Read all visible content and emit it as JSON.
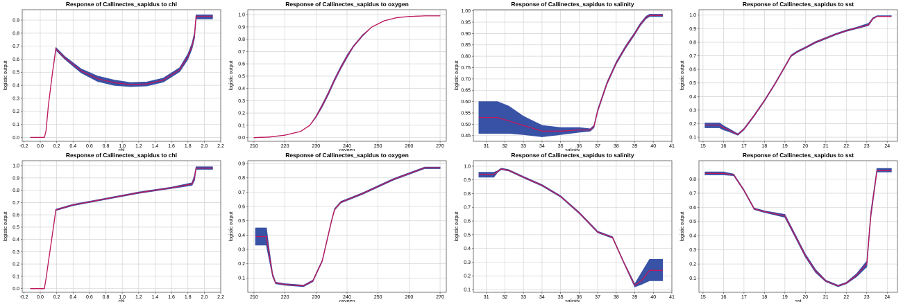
{
  "chart_data": [
    {
      "type": "line",
      "title": "Response of Callinectes_sapidus to chl",
      "xlabel": "chl",
      "ylabel": "logistic output",
      "xlim": [
        -0.22,
        2.2
      ],
      "ylim": [
        -0.03,
        0.98
      ],
      "xticks": [
        -0.2,
        0.0,
        0.2,
        0.4,
        0.6,
        0.8,
        1.0,
        1.2,
        1.4,
        1.6,
        1.8,
        2.0,
        2.2
      ],
      "xticklabels": [
        "-0.2",
        "0.0",
        "0.2",
        "0.4",
        "0.6",
        "0.8",
        "1.0",
        "1.2",
        "1.4",
        "1.6",
        "1.8",
        "2.0",
        "2.2"
      ],
      "yticks": [
        0.0,
        0.1,
        0.2,
        0.3,
        0.4,
        0.5,
        0.6,
        0.7,
        0.8,
        0.9
      ],
      "yticklabels": [
        "0.0",
        "0.1",
        "0.2",
        "0.3",
        "0.4",
        "0.5",
        "0.6",
        "0.7",
        "0.8",
        "0.9"
      ],
      "grid": true,
      "series": [
        {
          "x": [
            -0.12,
            0.05,
            0.07,
            0.1,
            0.15,
            0.19,
            0.3,
            0.5,
            0.7,
            0.9,
            1.1,
            1.3,
            1.5,
            1.7,
            1.8,
            1.85,
            1.88,
            1.9,
            2.1
          ],
          "y": [
            0.0,
            0.0,
            0.05,
            0.25,
            0.5,
            0.68,
            0.61,
            0.51,
            0.45,
            0.42,
            0.405,
            0.41,
            0.44,
            0.52,
            0.62,
            0.7,
            0.78,
            0.93,
            0.93
          ],
          "lower": [
            0.0,
            0.0,
            0.05,
            0.25,
            0.5,
            0.67,
            0.6,
            0.495,
            0.43,
            0.4,
            0.39,
            0.395,
            0.425,
            0.505,
            0.6,
            0.68,
            0.76,
            0.91,
            0.91
          ],
          "upper": [
            0.0,
            0.0,
            0.05,
            0.25,
            0.5,
            0.69,
            0.62,
            0.525,
            0.47,
            0.44,
            0.42,
            0.425,
            0.455,
            0.535,
            0.64,
            0.72,
            0.8,
            0.94,
            0.94
          ]
        }
      ]
    },
    {
      "type": "line",
      "title": "Response of Callinectes_sapidus to oxygen",
      "xlabel": "oxygen",
      "ylabel": "logistic output",
      "xlim": [
        208,
        272
      ],
      "ylim": [
        -0.03,
        1.04
      ],
      "xticks": [
        210,
        220,
        230,
        240,
        250,
        260,
        270
      ],
      "xticklabels": [
        "210",
        "220",
        "230",
        "240",
        "250",
        "260",
        "270"
      ],
      "yticks": [
        0.0,
        0.1,
        0.2,
        0.3,
        0.4,
        0.5,
        0.6,
        0.7,
        0.8,
        0.9,
        1.0
      ],
      "yticklabels": [
        "0.0",
        "0.1",
        "0.2",
        "0.3",
        "0.4",
        "0.5",
        "0.6",
        "0.7",
        "0.8",
        "0.9",
        "1.0"
      ],
      "grid": true,
      "series": [
        {
          "x": [
            210,
            215,
            220,
            225,
            228,
            230,
            232,
            234,
            236,
            238,
            240,
            242,
            245,
            248,
            252,
            256,
            260,
            265,
            270
          ],
          "y": [
            0.0,
            0.005,
            0.02,
            0.05,
            0.1,
            0.17,
            0.26,
            0.36,
            0.47,
            0.57,
            0.66,
            0.74,
            0.83,
            0.9,
            0.95,
            0.975,
            0.985,
            0.99,
            0.99
          ],
          "lower": [
            0.0,
            0.005,
            0.02,
            0.05,
            0.1,
            0.165,
            0.25,
            0.35,
            0.46,
            0.56,
            0.65,
            0.735,
            0.825,
            0.9,
            0.95,
            0.975,
            0.985,
            0.99,
            0.99
          ],
          "upper": [
            0.0,
            0.005,
            0.02,
            0.05,
            0.1,
            0.175,
            0.27,
            0.37,
            0.48,
            0.58,
            0.67,
            0.745,
            0.835,
            0.9,
            0.95,
            0.975,
            0.985,
            0.99,
            0.99
          ]
        }
      ]
    },
    {
      "type": "line",
      "title": "Response of Callinectes_sapidus to salinity",
      "xlabel": "salinity",
      "ylabel": "logistic output",
      "xlim": [
        30.3,
        41.0
      ],
      "ylim": [
        0.425,
        1.005
      ],
      "xticks": [
        31,
        32,
        33,
        34,
        35,
        36,
        37,
        38,
        39,
        40,
        41
      ],
      "xticklabels": [
        "31",
        "32",
        "33",
        "34",
        "35",
        "36",
        "37",
        "38",
        "39",
        "40",
        "41"
      ],
      "yticks": [
        0.45,
        0.5,
        0.55,
        0.6,
        0.65,
        0.7,
        0.75,
        0.8,
        0.85,
        0.9,
        0.95,
        1.0
      ],
      "yticklabels": [
        "0.45",
        "0.50",
        "0.55",
        "0.60",
        "0.65",
        "0.70",
        "0.75",
        "0.80",
        "0.85",
        "0.90",
        "0.95",
        "1.00"
      ],
      "grid": true,
      "series": [
        {
          "x": [
            30.6,
            31.6,
            32.2,
            33.0,
            34.0,
            35.0,
            36.0,
            36.6,
            36.8,
            37.0,
            37.5,
            38.0,
            38.5,
            39.0,
            39.3,
            39.6,
            39.8,
            40.0,
            40.5
          ],
          "y": [
            0.53,
            0.53,
            0.515,
            0.495,
            0.47,
            0.47,
            0.475,
            0.475,
            0.49,
            0.56,
            0.68,
            0.77,
            0.84,
            0.9,
            0.94,
            0.97,
            0.98,
            0.98,
            0.98
          ],
          "lower": [
            0.46,
            0.46,
            0.46,
            0.455,
            0.445,
            0.455,
            0.465,
            0.47,
            0.485,
            0.555,
            0.675,
            0.765,
            0.835,
            0.895,
            0.935,
            0.965,
            0.975,
            0.975,
            0.975
          ],
          "upper": [
            0.6,
            0.6,
            0.58,
            0.535,
            0.495,
            0.485,
            0.485,
            0.48,
            0.495,
            0.565,
            0.685,
            0.775,
            0.845,
            0.905,
            0.945,
            0.975,
            0.985,
            0.985,
            0.985
          ]
        }
      ]
    },
    {
      "type": "line",
      "title": "Response of Callinectes_sapidus to sst",
      "xlabel": "",
      "ylabel": "logistic output",
      "xlim": [
        14.8,
        24.5
      ],
      "ylim": [
        0.07,
        1.04
      ],
      "xticks": [
        15,
        16,
        17,
        18,
        19,
        20,
        21,
        22,
        23,
        24
      ],
      "xticklabels": [
        "15",
        "16",
        "17",
        "18",
        "19",
        "20",
        "21",
        "22",
        "23",
        "24"
      ],
      "yticks": [
        0.1,
        0.2,
        0.3,
        0.4,
        0.5,
        0.6,
        0.7,
        0.8,
        0.9,
        1.0
      ],
      "yticklabels": [
        "0.1",
        "0.2",
        "0.3",
        "0.4",
        "0.5",
        "0.6",
        "0.7",
        "0.8",
        "0.9",
        "1.0"
      ],
      "grid": true,
      "series": [
        {
          "x": [
            15.1,
            15.8,
            16.0,
            16.3,
            16.7,
            17.0,
            17.5,
            18.0,
            18.5,
            19.0,
            19.3,
            19.6,
            20.0,
            20.5,
            21.0,
            21.5,
            22.0,
            22.5,
            23.0,
            23.1,
            23.3,
            23.5,
            24.2
          ],
          "y": [
            0.19,
            0.19,
            0.17,
            0.15,
            0.12,
            0.16,
            0.26,
            0.37,
            0.49,
            0.62,
            0.7,
            0.73,
            0.76,
            0.8,
            0.83,
            0.86,
            0.885,
            0.905,
            0.925,
            0.93,
            0.975,
            0.99,
            0.99
          ],
          "lower": [
            0.17,
            0.17,
            0.155,
            0.14,
            0.115,
            0.155,
            0.255,
            0.365,
            0.485,
            0.615,
            0.695,
            0.725,
            0.755,
            0.795,
            0.825,
            0.855,
            0.88,
            0.9,
            0.92,
            0.925,
            0.97,
            0.99,
            0.99
          ],
          "upper": [
            0.205,
            0.205,
            0.185,
            0.16,
            0.125,
            0.165,
            0.265,
            0.375,
            0.495,
            0.625,
            0.705,
            0.735,
            0.765,
            0.805,
            0.835,
            0.865,
            0.89,
            0.91,
            0.935,
            0.94,
            0.98,
            0.995,
            0.995
          ]
        }
      ]
    },
    {
      "type": "line",
      "title": "Response of Callinectes_sapidus to chl",
      "xlabel": "chl",
      "ylabel": "logistic output",
      "xlim": [
        -0.22,
        2.2
      ],
      "ylim": [
        -0.03,
        1.04
      ],
      "xticks": [
        -0.2,
        0.0,
        0.2,
        0.4,
        0.6,
        0.8,
        1.0,
        1.2,
        1.4,
        1.6,
        1.8,
        2.0,
        2.2
      ],
      "xticklabels": [
        "-0.2",
        "0.0",
        "0.2",
        "0.4",
        "0.6",
        "0.8",
        "1.0",
        "1.2",
        "1.4",
        "1.6",
        "1.8",
        "2.0",
        "2.2"
      ],
      "yticks": [
        0.0,
        0.1,
        0.2,
        0.3,
        0.4,
        0.5,
        0.6,
        0.7,
        0.8,
        0.9,
        1.0
      ],
      "yticklabels": [
        "0.0",
        "0.1",
        "0.2",
        "0.3",
        "0.4",
        "0.5",
        "0.6",
        "0.7",
        "0.8",
        "0.9",
        "1.0"
      ],
      "grid": true,
      "series": [
        {
          "x": [
            -0.12,
            0.05,
            0.07,
            0.1,
            0.15,
            0.19,
            0.4,
            0.8,
            1.2,
            1.6,
            1.85,
            1.88,
            1.9,
            2.1
          ],
          "y": [
            0.0,
            0.0,
            0.08,
            0.22,
            0.45,
            0.64,
            0.68,
            0.73,
            0.78,
            0.82,
            0.85,
            0.9,
            0.98,
            0.98
          ],
          "lower": [
            0.0,
            0.0,
            0.08,
            0.22,
            0.45,
            0.635,
            0.675,
            0.725,
            0.775,
            0.815,
            0.84,
            0.88,
            0.97,
            0.97
          ],
          "upper": [
            0.0,
            0.0,
            0.08,
            0.22,
            0.45,
            0.645,
            0.685,
            0.735,
            0.785,
            0.825,
            0.86,
            0.92,
            0.99,
            0.99
          ]
        }
      ]
    },
    {
      "type": "line",
      "title": "Response of Callinectes_sapidus to oxygen",
      "xlabel": "oxygen",
      "ylabel": "logistic output",
      "xlim": [
        208,
        272
      ],
      "ylim": [
        0.0,
        0.92
      ],
      "xticks": [
        210,
        220,
        230,
        240,
        250,
        260,
        270
      ],
      "xticklabels": [
        "210",
        "220",
        "230",
        "240",
        "250",
        "260",
        "270"
      ],
      "yticks": [
        0.1,
        0.2,
        0.3,
        0.4,
        0.5,
        0.6,
        0.7,
        0.8,
        0.9
      ],
      "yticklabels": [
        "0.1",
        "0.2",
        "0.3",
        "0.4",
        "0.5",
        "0.6",
        "0.7",
        "0.8",
        "0.9"
      ],
      "grid": true,
      "series": [
        {
          "x": [
            210.5,
            214.0,
            215.0,
            216.0,
            217.0,
            220.0,
            223.0,
            226.0,
            229.0,
            232.0,
            235.0,
            236.0,
            238.0,
            245.0,
            250.0,
            255.0,
            260.0,
            265.0,
            270.0
          ],
          "y": [
            0.39,
            0.39,
            0.25,
            0.12,
            0.065,
            0.055,
            0.05,
            0.045,
            0.08,
            0.22,
            0.5,
            0.58,
            0.63,
            0.69,
            0.74,
            0.79,
            0.83,
            0.87,
            0.87
          ],
          "lower": [
            0.33,
            0.33,
            0.22,
            0.11,
            0.06,
            0.05,
            0.045,
            0.04,
            0.075,
            0.215,
            0.495,
            0.575,
            0.625,
            0.685,
            0.735,
            0.785,
            0.825,
            0.865,
            0.865
          ],
          "upper": [
            0.45,
            0.45,
            0.28,
            0.13,
            0.07,
            0.06,
            0.055,
            0.05,
            0.085,
            0.225,
            0.505,
            0.585,
            0.635,
            0.695,
            0.745,
            0.795,
            0.835,
            0.875,
            0.875
          ]
        }
      ]
    },
    {
      "type": "line",
      "title": "Response of Callinectes_sapidus to salinity",
      "xlabel": "salinity",
      "ylabel": "logistic output",
      "xlim": [
        30.3,
        41.0
      ],
      "ylim": [
        0.08,
        1.04
      ],
      "xticks": [
        31,
        32,
        33,
        34,
        35,
        36,
        37,
        38,
        39,
        40,
        41
      ],
      "xticklabels": [
        "31",
        "32",
        "33",
        "34",
        "35",
        "36",
        "37",
        "38",
        "39",
        "40",
        "41"
      ],
      "yticks": [
        0.1,
        0.2,
        0.3,
        0.4,
        0.5,
        0.6,
        0.7,
        0.8,
        0.9,
        1.0
      ],
      "yticklabels": [
        "0.1",
        "0.2",
        "0.3",
        "0.4",
        "0.5",
        "0.6",
        "0.7",
        "0.8",
        "0.9",
        "1.0"
      ],
      "grid": true,
      "series": [
        {
          "x": [
            30.6,
            31.4,
            31.6,
            31.8,
            32.2,
            33.0,
            34.0,
            35.0,
            36.0,
            37.0,
            37.8,
            38.4,
            39.0,
            39.4,
            39.8,
            40.5
          ],
          "y": [
            0.94,
            0.94,
            0.96,
            0.98,
            0.97,
            0.92,
            0.86,
            0.78,
            0.66,
            0.52,
            0.48,
            0.3,
            0.13,
            0.17,
            0.24,
            0.24
          ],
          "lower": [
            0.92,
            0.92,
            0.955,
            0.975,
            0.965,
            0.915,
            0.855,
            0.775,
            0.655,
            0.515,
            0.475,
            0.295,
            0.12,
            0.14,
            0.165,
            0.165
          ],
          "upper": [
            0.955,
            0.955,
            0.965,
            0.985,
            0.975,
            0.925,
            0.865,
            0.785,
            0.665,
            0.525,
            0.485,
            0.305,
            0.14,
            0.23,
            0.32,
            0.32
          ]
        }
      ]
    },
    {
      "type": "line",
      "title": "Response of Callinectes_sapidus to sst",
      "xlabel": "sst",
      "ylabel": "logistic output",
      "xlim": [
        14.8,
        24.5
      ],
      "ylim": [
        0.0,
        0.93
      ],
      "xticks": [
        15,
        16,
        17,
        18,
        19,
        20,
        21,
        22,
        23,
        24
      ],
      "xticklabels": [
        "15",
        "16",
        "17",
        "18",
        "19",
        "20",
        "21",
        "22",
        "23",
        "24"
      ],
      "yticks": [
        0.1,
        0.2,
        0.3,
        0.4,
        0.5,
        0.6,
        0.7,
        0.8
      ],
      "yticklabels": [
        "0.1",
        "0.2",
        "0.3",
        "0.4",
        "0.5",
        "0.6",
        "0.7",
        "0.8"
      ],
      "grid": true,
      "series": [
        {
          "x": [
            15.1,
            16.0,
            16.5,
            17.0,
            17.5,
            18.0,
            19.0,
            19.5,
            20.0,
            20.5,
            21.0,
            21.6,
            22.0,
            22.5,
            23.0,
            23.2,
            23.5,
            24.2
          ],
          "y": [
            0.84,
            0.84,
            0.83,
            0.72,
            0.59,
            0.57,
            0.54,
            0.4,
            0.26,
            0.15,
            0.08,
            0.045,
            0.065,
            0.12,
            0.2,
            0.55,
            0.86,
            0.86
          ],
          "lower": [
            0.83,
            0.83,
            0.825,
            0.715,
            0.585,
            0.565,
            0.53,
            0.39,
            0.25,
            0.14,
            0.075,
            0.04,
            0.06,
            0.11,
            0.18,
            0.53,
            0.85,
            0.85
          ],
          "upper": [
            0.85,
            0.85,
            0.835,
            0.725,
            0.595,
            0.575,
            0.55,
            0.41,
            0.27,
            0.16,
            0.085,
            0.05,
            0.07,
            0.13,
            0.22,
            0.57,
            0.875,
            0.875
          ]
        }
      ]
    }
  ]
}
